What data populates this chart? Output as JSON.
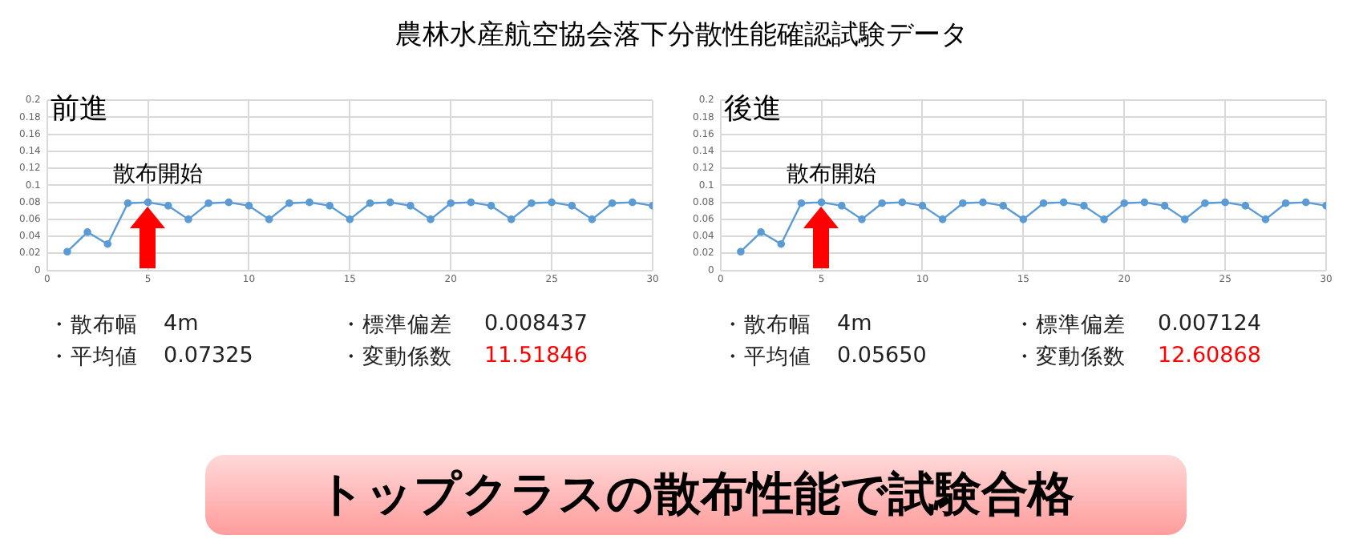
{
  "chart_data": [
    {
      "type": "line",
      "title": "前進",
      "x": [
        1,
        2,
        3,
        4,
        5,
        6,
        7,
        8,
        9,
        10,
        11,
        12,
        13,
        14,
        15,
        16,
        17,
        18,
        19,
        20,
        21,
        22,
        23,
        24,
        25,
        26,
        27,
        28,
        29,
        30
      ],
      "series": [
        {
          "color": "#5b9bd5",
          "values": [
            0.022,
            0.045,
            0.031,
            0.079,
            0.08,
            0.076,
            0.06,
            0.079,
            0.08,
            0.076,
            0.06,
            0.079,
            0.08,
            0.076,
            0.06,
            0.079,
            0.08,
            0.076,
            0.06,
            0.079,
            0.08,
            0.076,
            0.06,
            0.079,
            0.08,
            0.076,
            0.06,
            0.079,
            0.08,
            0.076
          ]
        }
      ],
      "xlim": [
        0,
        30
      ],
      "xticks": [
        0,
        5,
        10,
        15,
        20,
        25,
        30
      ],
      "ylim": [
        0,
        0.2
      ],
      "yticks": [
        0,
        0.02,
        0.04,
        0.06,
        0.08,
        0.1,
        0.12,
        0.14,
        0.16,
        0.18,
        0.2
      ],
      "grid": true,
      "marker": "circle",
      "line_style": "solid",
      "legend": false,
      "annotations": [
        {
          "text": "散布開始",
          "x": 5,
          "y": 0.08
        },
        "・散布幅",
        "4m",
        "・標準偏差",
        "0.008437",
        "・平均値",
        "0.07325",
        "・変動係数",
        "11.51846"
      ]
    },
    {
      "type": "line",
      "title": "後進",
      "x": [
        1,
        2,
        3,
        4,
        5,
        6,
        7,
        8,
        9,
        10,
        11,
        12,
        13,
        14,
        15,
        16,
        17,
        18,
        19,
        20,
        21,
        22,
        23,
        24,
        25,
        26,
        27,
        28,
        29,
        30
      ],
      "series": [
        {
          "color": "#5b9bd5",
          "values": [
            0.022,
            0.045,
            0.031,
            0.079,
            0.08,
            0.076,
            0.06,
            0.079,
            0.08,
            0.076,
            0.06,
            0.079,
            0.08,
            0.076,
            0.06,
            0.079,
            0.08,
            0.076,
            0.06,
            0.079,
            0.08,
            0.076,
            0.06,
            0.079,
            0.08,
            0.076,
            0.06,
            0.079,
            0.08,
            0.076
          ]
        }
      ],
      "xlim": [
        0,
        30
      ],
      "xticks": [
        0,
        5,
        10,
        15,
        20,
        25,
        30
      ],
      "ylim": [
        0,
        0.2
      ],
      "yticks": [
        0,
        0.02,
        0.04,
        0.06,
        0.08,
        0.1,
        0.12,
        0.14,
        0.16,
        0.18,
        0.2
      ],
      "grid": true,
      "marker": "circle",
      "line_style": "solid",
      "legend": false,
      "annotations": [
        {
          "text": "散布開始",
          "x": 5,
          "y": 0.08
        },
        "・散布幅",
        "4m",
        "・標準偏差",
        "0.007124",
        "・平均値",
        "0.05650",
        "・変動係数",
        "12.60868"
      ]
    },
    {
      "type": "other",
      "title": "農林水産航空協会落下分散性能確認試験データ",
      "annotations": [
        "トップクラスの散布性能で試験合格"
      ]
    }
  ]
}
